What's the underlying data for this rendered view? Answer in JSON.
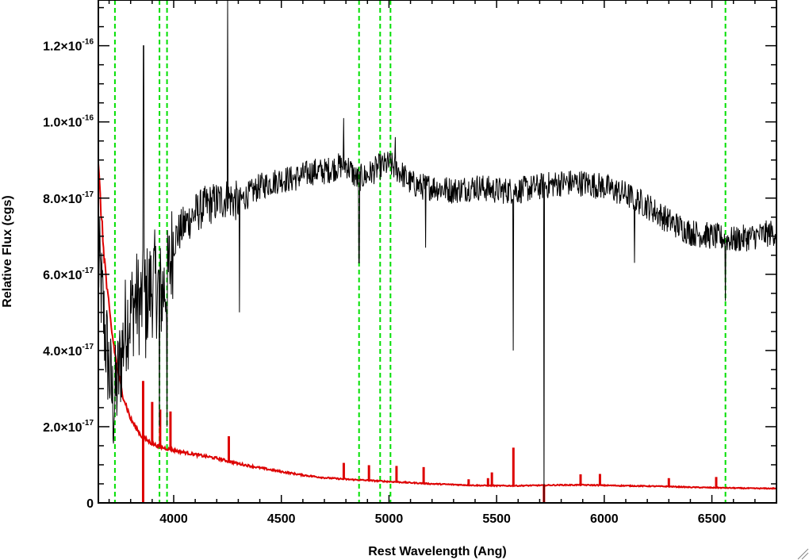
{
  "chart_data": {
    "type": "line",
    "title": "",
    "xlabel": "Rest Wavelength (Ang)",
    "ylabel": "Relative Flux (cgs)",
    "xlim": [
      3650,
      6800
    ],
    "ylim": [
      0,
      1.32e-16
    ],
    "grid": false,
    "legend": "none",
    "xticks": [
      {
        "value": 4000,
        "label": "4000"
      },
      {
        "value": 4500,
        "label": "4500"
      },
      {
        "value": 5000,
        "label": "5000"
      },
      {
        "value": 5500,
        "label": "5500"
      },
      {
        "value": 6000,
        "label": "6000"
      },
      {
        "value": 6500,
        "label": "6500"
      }
    ],
    "yticks": [
      {
        "value": 0,
        "mantissa": "0",
        "times": "",
        "base": "",
        "exponent": ""
      },
      {
        "value": 2e-17,
        "mantissa": "2.0",
        "times": "×",
        "base": "10",
        "exponent": "-17"
      },
      {
        "value": 4e-17,
        "mantissa": "4.0",
        "times": "×",
        "base": "10",
        "exponent": "-17"
      },
      {
        "value": 6e-17,
        "mantissa": "6.0",
        "times": "×",
        "base": "10",
        "exponent": "-17"
      },
      {
        "value": 8e-17,
        "mantissa": "8.0",
        "times": "×",
        "base": "10",
        "exponent": "-17"
      },
      {
        "value": 1e-16,
        "mantissa": "1.0",
        "times": "×",
        "base": "10",
        "exponent": "-16"
      },
      {
        "value": 1.2e-16,
        "mantissa": "1.2",
        "times": "×",
        "base": "10",
        "exponent": "-16"
      }
    ],
    "vlines": [
      3727,
      3934,
      3969,
      4861,
      4959,
      5007,
      6563
    ],
    "series": [
      {
        "role": "spectrum",
        "color": "#000000",
        "points": [
          [
            3655,
            6.2e-17
          ],
          [
            3680,
            4.5e-17
          ],
          [
            3700,
            3.5e-17
          ],
          [
            3720,
            2.5e-17
          ],
          [
            3740,
            3.2e-17
          ],
          [
            3760,
            4e-17
          ],
          [
            3780,
            4.8e-17
          ],
          [
            3800,
            5e-17
          ],
          [
            3820,
            5.3e-17
          ],
          [
            3850,
            5.2e-17
          ],
          [
            3880,
            5.5e-17
          ],
          [
            3910,
            5.8e-17
          ],
          [
            3940,
            5.5e-17
          ],
          [
            3970,
            5.8e-17
          ],
          [
            4000,
            6.9e-17
          ],
          [
            4050,
            7.3e-17
          ],
          [
            4100,
            7.6e-17
          ],
          [
            4150,
            7.8e-17
          ],
          [
            4200,
            7.9e-17
          ],
          [
            4250,
            8e-17
          ],
          [
            4300,
            7.9e-17
          ],
          [
            4350,
            8.1e-17
          ],
          [
            4400,
            8.3e-17
          ],
          [
            4450,
            8.4e-17
          ],
          [
            4500,
            8.5e-17
          ],
          [
            4550,
            8.5e-17
          ],
          [
            4600,
            8.6e-17
          ],
          [
            4650,
            8.7e-17
          ],
          [
            4700,
            8.7e-17
          ],
          [
            4750,
            8.8e-17
          ],
          [
            4800,
            8.9e-17
          ],
          [
            4850,
            8.5e-17
          ],
          [
            4900,
            8.6e-17
          ],
          [
            4950,
            8.8e-17
          ],
          [
            5000,
            8.9e-17
          ],
          [
            5050,
            8.7e-17
          ],
          [
            5100,
            8.4e-17
          ],
          [
            5150,
            8.3e-17
          ],
          [
            5200,
            8.3e-17
          ],
          [
            5300,
            8.2e-17
          ],
          [
            5400,
            8.3e-17
          ],
          [
            5500,
            8.2e-17
          ],
          [
            5600,
            8.2e-17
          ],
          [
            5700,
            8.3e-17
          ],
          [
            5800,
            8.4e-17
          ],
          [
            5900,
            8.4e-17
          ],
          [
            6000,
            8.3e-17
          ],
          [
            6100,
            8.1e-17
          ],
          [
            6200,
            7.8e-17
          ],
          [
            6300,
            7.4e-17
          ],
          [
            6400,
            7.1e-17
          ],
          [
            6500,
            7e-17
          ],
          [
            6600,
            6.9e-17
          ],
          [
            6700,
            7e-17
          ],
          [
            6790,
            7.1e-17
          ]
        ],
        "features": [
          {
            "x": 3860,
            "y": 1.2e-16
          },
          {
            "x": 3870,
            "y": 3.8e-17
          },
          {
            "x": 3934,
            "y": 2e-17
          },
          {
            "x": 3969,
            "y": 2e-17
          },
          {
            "x": 4250,
            "y": 1.32e-16
          },
          {
            "x": 4305,
            "y": 5e-17
          },
          {
            "x": 4790,
            "y": 1.01e-16
          },
          {
            "x": 4861,
            "y": 6.3e-17
          },
          {
            "x": 5030,
            "y": 9.6e-17
          },
          {
            "x": 5170,
            "y": 6.7e-17
          },
          {
            "x": 5577,
            "y": 4e-17
          },
          {
            "x": 5720,
            "y": 0
          },
          {
            "x": 6140,
            "y": 6.3e-17
          },
          {
            "x": 6563,
            "y": 5.3e-17
          }
        ]
      },
      {
        "role": "noise",
        "color": "#dd0000",
        "points": [
          [
            3650,
            8.8e-17
          ],
          [
            3670,
            7e-17
          ],
          [
            3690,
            5.6e-17
          ],
          [
            3710,
            4.6e-17
          ],
          [
            3730,
            3.8e-17
          ],
          [
            3760,
            2.9e-17
          ],
          [
            3800,
            2.2e-17
          ],
          [
            3850,
            1.75e-17
          ],
          [
            3900,
            1.55e-17
          ],
          [
            3950,
            1.45e-17
          ],
          [
            4000,
            1.38e-17
          ],
          [
            4100,
            1.27e-17
          ],
          [
            4200,
            1.17e-17
          ],
          [
            4300,
            1.03e-17
          ],
          [
            4400,
            9.2e-18
          ],
          [
            4500,
            8.2e-18
          ],
          [
            4600,
            7.3e-18
          ],
          [
            4700,
            6.6e-18
          ],
          [
            4800,
            6.2e-18
          ],
          [
            4900,
            5.9e-18
          ],
          [
            5000,
            5.6e-18
          ],
          [
            5100,
            5.3e-18
          ],
          [
            5200,
            5e-18
          ],
          [
            5300,
            4.8e-18
          ],
          [
            5400,
            4.6e-18
          ],
          [
            5500,
            4.5e-18
          ],
          [
            5600,
            4.5e-18
          ],
          [
            5700,
            4.6e-18
          ],
          [
            5800,
            4.7e-18
          ],
          [
            5900,
            4.7e-18
          ],
          [
            6000,
            4.6e-18
          ],
          [
            6100,
            4.5e-18
          ],
          [
            6200,
            4.4e-18
          ],
          [
            6300,
            4.3e-18
          ],
          [
            6400,
            4.1e-18
          ],
          [
            6500,
            4e-18
          ],
          [
            6600,
            3.9e-18
          ],
          [
            6700,
            3.8e-18
          ],
          [
            6800,
            3.8e-18
          ]
        ],
        "spikes": [
          {
            "x": 3858,
            "y": 3.2e-17
          },
          {
            "x": 3900,
            "y": 2.65e-17
          },
          {
            "x": 3937,
            "y": 2.45e-17
          },
          {
            "x": 3985,
            "y": 2.4e-17
          },
          {
            "x": 4256,
            "y": 1.75e-17
          },
          {
            "x": 4790,
            "y": 1.05e-17
          },
          {
            "x": 4907,
            "y": 9.9e-18
          },
          {
            "x": 5035,
            "y": 9.7e-18
          },
          {
            "x": 5161,
            "y": 9.4e-18
          },
          {
            "x": 5370,
            "y": 6.2e-18
          },
          {
            "x": 5460,
            "y": 6.5e-18
          },
          {
            "x": 5478,
            "y": 8e-18
          },
          {
            "x": 5578,
            "y": 1.45e-17
          },
          {
            "x": 5890,
            "y": 7.5e-18
          },
          {
            "x": 5980,
            "y": 7.6e-18
          },
          {
            "x": 6300,
            "y": 6.5e-18
          },
          {
            "x": 6520,
            "y": 6.8e-18
          }
        ],
        "dips": [
          {
            "x": 3858,
            "y": 0
          },
          {
            "x": 5720,
            "y": 0
          }
        ]
      }
    ]
  }
}
